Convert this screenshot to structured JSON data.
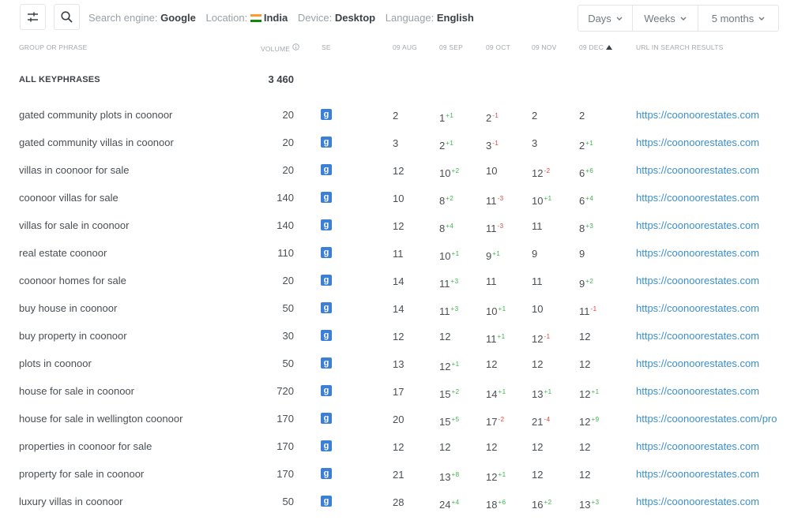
{
  "toolbar": {
    "search_engine_label": "Search engine:",
    "search_engine": "Google",
    "location_label": "Location:",
    "location": "India",
    "device_label": "Device:",
    "device": "Desktop",
    "language_label": "Language:",
    "language": "English",
    "dropdowns": [
      "Days",
      "Weeks",
      "5 months"
    ]
  },
  "colors": {
    "up": "#3cb44a",
    "down": "#e0443d",
    "link": "#3a8fcf",
    "google_badge": "#3b7fd6"
  },
  "table": {
    "headers": {
      "phrase": "GROUP OR PHRASE",
      "volume": "VOLUME",
      "se": "SE",
      "dates": [
        "09 AUG",
        "09 SEP",
        "09 OCT",
        "09 NOV",
        "09 DEC"
      ],
      "url": "URL IN SEARCH RESULTS",
      "sorted_column": "09 DEC"
    },
    "summary": {
      "label": "ALL KEYPHRASES",
      "volume": "3 460"
    },
    "rows": [
      {
        "phrase": "gated community plots in coonoor",
        "volume": "20",
        "se": "g",
        "pos": [
          {
            "v": "2"
          },
          {
            "v": "1",
            "c": "+1",
            "d": "up"
          },
          {
            "v": "2",
            "c": "-1",
            "d": "down"
          },
          {
            "v": "2"
          },
          {
            "v": "2"
          }
        ],
        "url": "https://coonoorestates.com"
      },
      {
        "phrase": "gated community villas in coonoor",
        "volume": "20",
        "se": "g",
        "pos": [
          {
            "v": "3"
          },
          {
            "v": "2",
            "c": "+1",
            "d": "up"
          },
          {
            "v": "3",
            "c": "-1",
            "d": "down"
          },
          {
            "v": "3"
          },
          {
            "v": "2",
            "c": "+1",
            "d": "up"
          }
        ],
        "url": "https://coonoorestates.com"
      },
      {
        "phrase": "villas in coonoor for sale",
        "volume": "20",
        "se": "g",
        "pos": [
          {
            "v": "12"
          },
          {
            "v": "10",
            "c": "+2",
            "d": "up"
          },
          {
            "v": "10"
          },
          {
            "v": "12",
            "c": "-2",
            "d": "down"
          },
          {
            "v": "6",
            "c": "+6",
            "d": "up"
          }
        ],
        "url": "https://coonoorestates.com"
      },
      {
        "phrase": "coonoor villas for sale",
        "volume": "140",
        "se": "g",
        "pos": [
          {
            "v": "10"
          },
          {
            "v": "8",
            "c": "+2",
            "d": "up"
          },
          {
            "v": "11",
            "c": "-3",
            "d": "down"
          },
          {
            "v": "10",
            "c": "+1",
            "d": "up"
          },
          {
            "v": "6",
            "c": "+4",
            "d": "up"
          }
        ],
        "url": "https://coonoorestates.com"
      },
      {
        "phrase": "villas for sale in coonoor",
        "volume": "140",
        "se": "g",
        "pos": [
          {
            "v": "12"
          },
          {
            "v": "8",
            "c": "+4",
            "d": "up"
          },
          {
            "v": "11",
            "c": "-3",
            "d": "down"
          },
          {
            "v": "11"
          },
          {
            "v": "8",
            "c": "+3",
            "d": "up"
          }
        ],
        "url": "https://coonoorestates.com"
      },
      {
        "phrase": "real estate coonoor",
        "volume": "110",
        "se": "g",
        "pos": [
          {
            "v": "11"
          },
          {
            "v": "10",
            "c": "+1",
            "d": "up"
          },
          {
            "v": "9",
            "c": "+1",
            "d": "up"
          },
          {
            "v": "9"
          },
          {
            "v": "9"
          }
        ],
        "url": "https://coonoorestates.com"
      },
      {
        "phrase": "coonoor homes for sale",
        "volume": "20",
        "se": "g",
        "pos": [
          {
            "v": "14"
          },
          {
            "v": "11",
            "c": "+3",
            "d": "up"
          },
          {
            "v": "11"
          },
          {
            "v": "11"
          },
          {
            "v": "9",
            "c": "+2",
            "d": "up"
          }
        ],
        "url": "https://coonoorestates.com"
      },
      {
        "phrase": "buy house in coonoor",
        "volume": "50",
        "se": "g",
        "pos": [
          {
            "v": "14"
          },
          {
            "v": "11",
            "c": "+3",
            "d": "up"
          },
          {
            "v": "10",
            "c": "+1",
            "d": "up"
          },
          {
            "v": "10"
          },
          {
            "v": "11",
            "c": "-1",
            "d": "down"
          }
        ],
        "url": "https://coonoorestates.com"
      },
      {
        "phrase": "buy property in coonoor",
        "volume": "30",
        "se": "g",
        "pos": [
          {
            "v": "12"
          },
          {
            "v": "12"
          },
          {
            "v": "11",
            "c": "+1",
            "d": "up"
          },
          {
            "v": "12",
            "c": "-1",
            "d": "down"
          },
          {
            "v": "12"
          }
        ],
        "url": "https://coonoorestates.com"
      },
      {
        "phrase": "plots in coonoor",
        "volume": "50",
        "se": "g",
        "pos": [
          {
            "v": "13"
          },
          {
            "v": "12",
            "c": "+1",
            "d": "up"
          },
          {
            "v": "12"
          },
          {
            "v": "12"
          },
          {
            "v": "12"
          }
        ],
        "url": "https://coonoorestates.com"
      },
      {
        "phrase": "house for sale in coonoor",
        "volume": "720",
        "se": "g",
        "pos": [
          {
            "v": "17"
          },
          {
            "v": "15",
            "c": "+2",
            "d": "up"
          },
          {
            "v": "14",
            "c": "+1",
            "d": "up"
          },
          {
            "v": "13",
            "c": "+1",
            "d": "up"
          },
          {
            "v": "12",
            "c": "+1",
            "d": "up"
          }
        ],
        "url": "https://coonoorestates.com"
      },
      {
        "phrase": "house for sale in wellington coonoor",
        "volume": "170",
        "se": "g",
        "pos": [
          {
            "v": "20"
          },
          {
            "v": "15",
            "c": "+5",
            "d": "up"
          },
          {
            "v": "17",
            "c": "-2",
            "d": "down"
          },
          {
            "v": "21",
            "c": "-4",
            "d": "down"
          },
          {
            "v": "12",
            "c": "+9",
            "d": "up"
          }
        ],
        "url": "https://coonoorestates.com/pro"
      },
      {
        "phrase": "properties in coonoor for sale",
        "volume": "170",
        "se": "g",
        "pos": [
          {
            "v": "12"
          },
          {
            "v": "12"
          },
          {
            "v": "12"
          },
          {
            "v": "12"
          },
          {
            "v": "12"
          }
        ],
        "url": "https://coonoorestates.com"
      },
      {
        "phrase": "property for sale in coonoor",
        "volume": "170",
        "se": "g",
        "pos": [
          {
            "v": "21"
          },
          {
            "v": "13",
            "c": "+8",
            "d": "up"
          },
          {
            "v": "12",
            "c": "+1",
            "d": "up"
          },
          {
            "v": "12"
          },
          {
            "v": "12"
          }
        ],
        "url": "https://coonoorestates.com"
      },
      {
        "phrase": "luxury villas in coonoor",
        "volume": "50",
        "se": "g",
        "pos": [
          {
            "v": "28"
          },
          {
            "v": "24",
            "c": "+4",
            "d": "up"
          },
          {
            "v": "18",
            "c": "+6",
            "d": "up"
          },
          {
            "v": "16",
            "c": "+2",
            "d": "up"
          },
          {
            "v": "13",
            "c": "+3",
            "d": "up"
          }
        ],
        "url": "https://coonoorestates.com"
      }
    ]
  }
}
